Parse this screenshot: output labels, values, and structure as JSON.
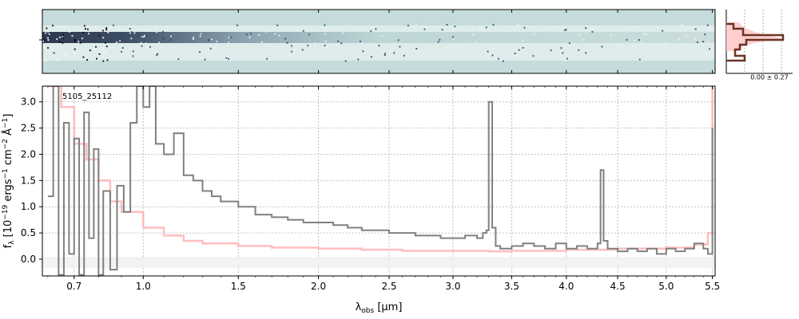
{
  "chart_data": {
    "type": "line",
    "source_id": "5105_25112",
    "xlabel_parts": {
      "main": "λ",
      "sub": "obs",
      "unit": " [μm]"
    },
    "ylabel_text": "f",
    "ylabel_sub": "λ",
    "ylabel_unit": " [10",
    "ylabel_exp": "−19",
    "ylabel_rest": " ergs",
    "ylabel_rest2": "−1",
    "ylabel_rest3": " cm",
    "ylabel_rest4": "−2",
    "ylabel_rest5": " Å",
    "ylabel_rest6": "−1",
    "ylabel_close": "]",
    "x_axis_scale": "sqrt",
    "xlim": [
      0.58,
      5.53
    ],
    "ylim": [
      -0.32,
      3.3
    ],
    "xticks": [
      0.7,
      1.0,
      1.5,
      2.0,
      2.5,
      3.0,
      3.5,
      4.0,
      4.5,
      5.0,
      5.5
    ],
    "xtick_labels": [
      "0.7",
      "1.0",
      "1.5",
      "2.0",
      "2.5",
      "3.0",
      "3.5",
      "4.0",
      "4.5",
      "5.0",
      "5.5"
    ],
    "yticks": [
      0.0,
      0.5,
      1.0,
      1.5,
      2.0,
      2.5,
      3.0
    ],
    "ytick_labels": [
      "0.0",
      "0.5",
      "1.0",
      "1.5",
      "2.0",
      "2.5",
      "3.0"
    ],
    "grid": true,
    "histogram_label": "0.00 ± 0.27",
    "series": [
      {
        "role": "flux",
        "color": "#808080",
        "x": [
          0.6,
          0.62,
          0.64,
          0.66,
          0.68,
          0.7,
          0.72,
          0.74,
          0.76,
          0.78,
          0.8,
          0.82,
          0.85,
          0.88,
          0.91,
          0.94,
          0.97,
          1.0,
          1.03,
          1.06,
          1.1,
          1.15,
          1.2,
          1.25,
          1.3,
          1.35,
          1.4,
          1.5,
          1.6,
          1.7,
          1.8,
          1.9,
          2.0,
          2.1,
          2.2,
          2.3,
          2.4,
          2.5,
          2.6,
          2.7,
          2.8,
          2.9,
          3.0,
          3.1,
          3.2,
          3.25,
          3.28,
          3.3,
          3.33,
          3.36,
          3.4,
          3.5,
          3.6,
          3.7,
          3.8,
          3.9,
          4.0,
          4.1,
          4.2,
          4.3,
          4.33,
          4.36,
          4.4,
          4.5,
          4.6,
          4.7,
          4.8,
          4.9,
          5.0,
          5.1,
          5.2,
          5.3,
          5.4,
          5.45,
          5.5
        ],
        "y": [
          1.2,
          3.3,
          -0.3,
          2.6,
          0.1,
          2.3,
          -0.3,
          2.8,
          0.4,
          2.1,
          -0.3,
          1.3,
          -0.2,
          1.4,
          0.9,
          2.6,
          3.3,
          2.9,
          3.3,
          2.2,
          2.0,
          2.4,
          1.6,
          1.5,
          1.3,
          1.2,
          1.1,
          1.0,
          0.85,
          0.8,
          0.75,
          0.7,
          0.7,
          0.65,
          0.6,
          0.55,
          0.55,
          0.5,
          0.5,
          0.45,
          0.45,
          0.4,
          0.4,
          0.45,
          0.4,
          0.5,
          0.55,
          3.0,
          0.6,
          0.25,
          0.2,
          0.25,
          0.3,
          0.25,
          0.2,
          0.3,
          0.2,
          0.25,
          0.2,
          0.3,
          1.7,
          0.35,
          0.2,
          0.15,
          0.2,
          0.15,
          0.2,
          0.1,
          0.2,
          0.15,
          0.2,
          0.3,
          0.2,
          0.1,
          2.5
        ]
      },
      {
        "role": "uncertainty",
        "color": "#ffb3b3",
        "x": [
          0.6,
          0.65,
          0.7,
          0.75,
          0.8,
          0.85,
          0.9,
          1.0,
          1.1,
          1.2,
          1.3,
          1.5,
          1.7,
          2.0,
          2.3,
          2.6,
          3.0,
          3.3,
          3.5,
          4.0,
          4.5,
          5.0,
          5.3,
          5.45,
          5.5
        ],
        "y": [
          3.3,
          2.9,
          2.2,
          1.9,
          1.5,
          1.1,
          0.9,
          0.6,
          0.45,
          0.35,
          0.3,
          0.25,
          0.22,
          0.2,
          0.18,
          0.16,
          0.16,
          0.15,
          0.16,
          0.18,
          0.2,
          0.22,
          0.28,
          0.5,
          3.3
        ]
      }
    ]
  }
}
